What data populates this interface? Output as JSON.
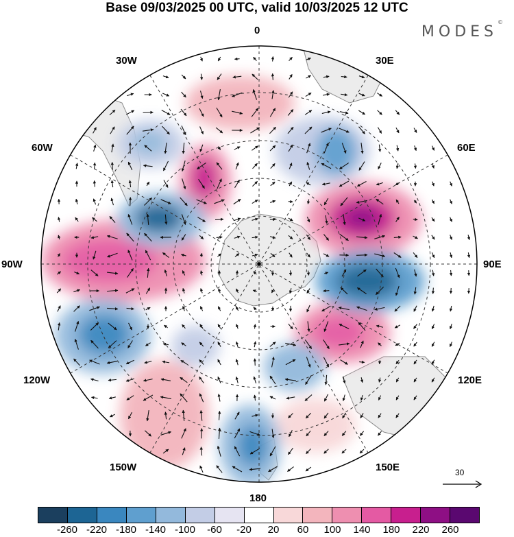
{
  "title": "Base 09/03/2025 00 UTC, valid 10/03/2025 12 UTC",
  "logo": "MODES",
  "logo_mark": "©",
  "longitude_labels": {
    "lon_0": "0",
    "lon_30e": "30E",
    "lon_60e": "60E",
    "lon_90e": "90E",
    "lon_120e": "120E",
    "lon_150e": "150E",
    "lon_180": "180",
    "lon_150w": "150W",
    "lon_120w": "120W",
    "lon_90w": "90W",
    "lon_60w": "60W",
    "lon_30w": "30W"
  },
  "reference_vector": "30",
  "colorbar": {
    "colors": [
      "#1b3f5e",
      "#1d6594",
      "#3a87bf",
      "#5f9fcf",
      "#93b9dc",
      "#c3cde6",
      "#e6e4f2",
      "#ffffff",
      "#f8d8d9",
      "#f3b5bd",
      "#ee8fb0",
      "#e45aa3",
      "#c81f8e",
      "#8e0f84",
      "#5a0870"
    ],
    "ticks": [
      "-260",
      "-220",
      "-180",
      "-140",
      "-100",
      "-60",
      "-20",
      "20",
      "60",
      "100",
      "140",
      "180",
      "220",
      "260"
    ]
  },
  "anomaly_centers": [
    {
      "name": "high-90w",
      "level": 140
    },
    {
      "name": "high-0",
      "level": 60
    },
    {
      "name": "high-40w",
      "level": 180
    },
    {
      "name": "high-70e",
      "level": 220
    },
    {
      "name": "high-110e",
      "level": 180
    },
    {
      "name": "high-150w",
      "level": 60
    },
    {
      "name": "high-165e",
      "level": 60
    },
    {
      "name": "low-60w",
      "level": -180
    },
    {
      "name": "low-45w",
      "level": -100
    },
    {
      "name": "low-45e",
      "level": -140
    },
    {
      "name": "low-90e",
      "level": -220
    },
    {
      "name": "low-115w",
      "level": -180
    },
    {
      "name": "low-180",
      "level": -140
    },
    {
      "name": "low-150e",
      "level": -140
    },
    {
      "name": "low-140w",
      "level": -60
    }
  ]
}
